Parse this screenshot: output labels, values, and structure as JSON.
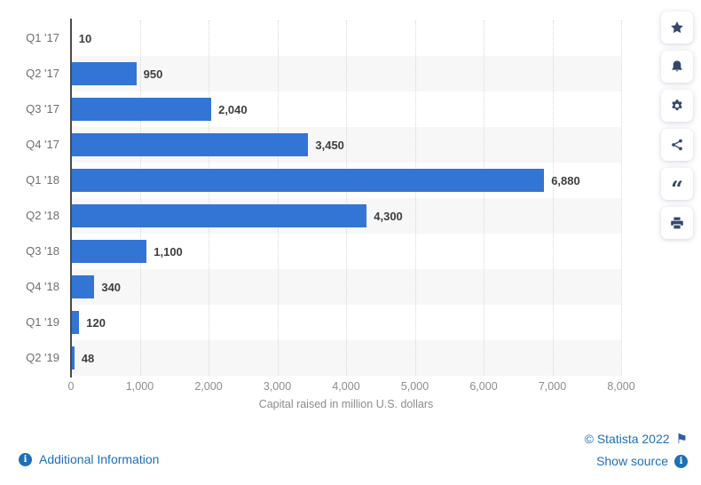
{
  "chart_data": {
    "type": "bar",
    "orientation": "horizontal",
    "categories": [
      "Q1 '17",
      "Q2 '17",
      "Q3 '17",
      "Q4 '17",
      "Q1 '18",
      "Q2 '18",
      "Q3 '18",
      "Q4 '18",
      "Q1 '19",
      "Q2 '19"
    ],
    "values": [
      10,
      950,
      2040,
      3450,
      6880,
      4300,
      1100,
      340,
      120,
      48
    ],
    "value_labels": [
      "10",
      "950",
      "2,040",
      "3,450",
      "6,880",
      "4,300",
      "1,100",
      "340",
      "120",
      "48"
    ],
    "title": "",
    "xlabel": "Capital raised in million U.S. dollars",
    "ylabel": "",
    "xlim": [
      0,
      8000
    ],
    "x_ticks": [
      0,
      1000,
      2000,
      3000,
      4000,
      5000,
      6000,
      7000,
      8000
    ],
    "x_tick_labels": [
      "0",
      "1,000",
      "2,000",
      "3,000",
      "4,000",
      "5,000",
      "6,000",
      "7,000",
      "8,000"
    ],
    "grid": "vertical-dotted",
    "row_stripes": "alternating, even rows shaded",
    "legend": "none",
    "bar_color": "#3375d5"
  },
  "toolbar": {
    "buttons": [
      {
        "name": "favorite-button",
        "icon": "star-icon"
      },
      {
        "name": "notification-button",
        "icon": "bell-icon"
      },
      {
        "name": "settings-button",
        "icon": "gear-icon"
      },
      {
        "name": "share-button",
        "icon": "share-icon"
      },
      {
        "name": "citation-button",
        "icon": "quote-icon"
      },
      {
        "name": "print-button",
        "icon": "print-icon"
      }
    ]
  },
  "footer": {
    "additional_information": "Additional Information",
    "copyright": "© Statista 2022",
    "show_source": "Show source",
    "info_badge_glyph": "i",
    "flag_glyph": "⚑"
  },
  "colors": {
    "bar_blue": "#3375d5",
    "link_blue": "#1d6fb8",
    "icon_navy": "#35476b",
    "stripe_gray": "#f7f7f8",
    "axis_gray": "#4a4a4a",
    "tick_gray": "#8c8c8c",
    "category_gray": "#6f6f6f",
    "value_dark": "#3e3e3e",
    "flag_blue": "#2e5ca8"
  }
}
